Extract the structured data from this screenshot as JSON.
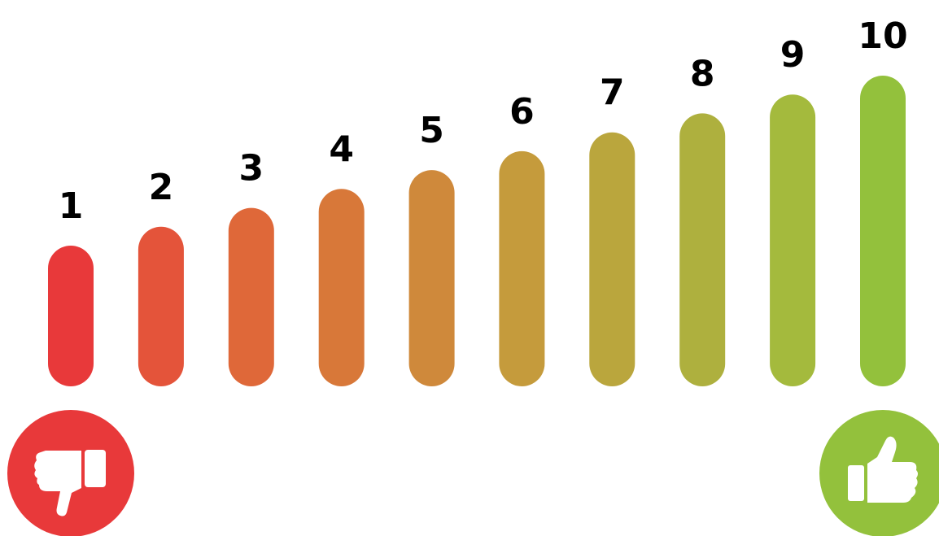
{
  "scale": {
    "min": 1,
    "max": 10,
    "labels": [
      "1",
      "2",
      "3",
      "4",
      "5",
      "6",
      "7",
      "8",
      "9",
      "10"
    ],
    "colors": [
      "#e8393a",
      "#e4543a",
      "#df6839",
      "#d87839",
      "#cf893b",
      "#c59b3c",
      "#baa63d",
      "#aeb03e",
      "#a4ba3d",
      "#93c13c"
    ]
  },
  "icons": {
    "negative": {
      "name": "thumbs-down-icon",
      "color": "#e8393a"
    },
    "positive": {
      "name": "thumbs-up-icon",
      "color": "#93c13c"
    }
  }
}
